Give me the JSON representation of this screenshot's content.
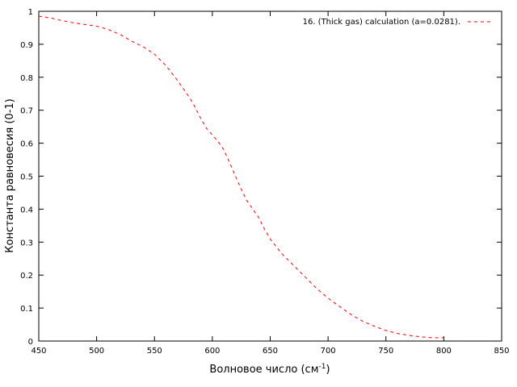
{
  "chart_data": {
    "type": "line",
    "xlabel": "Волновое число (см",
    "xlabel_sup": "-1",
    "xlabel_end": ")",
    "ylabel": "Константа равновесия (0-1)",
    "xlim": [
      450,
      850
    ],
    "ylim": [
      0,
      1
    ],
    "xticks": [
      450,
      500,
      550,
      600,
      650,
      700,
      750,
      800,
      850
    ],
    "yticks": [
      0,
      0.1,
      0.2,
      0.3,
      0.4,
      0.5,
      0.6,
      0.7,
      0.8,
      0.9,
      1
    ],
    "xtick_labels": [
      "450",
      "500",
      "550",
      "600",
      "650",
      "700",
      "750",
      "800",
      "850"
    ],
    "ytick_labels": [
      "0",
      "0.1",
      "0.2",
      "0.3",
      "0.4",
      "0.5",
      "0.6",
      "0.7",
      "0.8",
      "0.9",
      "1"
    ],
    "grid": false,
    "legend_position": "top-right",
    "series": [
      {
        "name": "16. (Thick gas) calculation (a=0.0281).",
        "color": "#ff0000",
        "style": "dashed",
        "x": [
          450,
          460,
          470,
          480,
          490,
          500,
          510,
          520,
          530,
          540,
          550,
          560,
          570,
          580,
          585,
          590,
          595,
          600,
          605,
          610,
          615,
          620,
          625,
          630,
          635,
          640,
          645,
          650,
          660,
          670,
          680,
          690,
          700,
          710,
          720,
          730,
          740,
          750,
          760,
          770,
          780,
          790,
          800
        ],
        "y": [
          0.985,
          0.98,
          0.972,
          0.965,
          0.96,
          0.955,
          0.945,
          0.93,
          0.91,
          0.893,
          0.87,
          0.835,
          0.79,
          0.74,
          0.71,
          0.675,
          0.645,
          0.625,
          0.605,
          0.58,
          0.54,
          0.5,
          0.46,
          0.425,
          0.4,
          0.375,
          0.34,
          0.31,
          0.265,
          0.23,
          0.195,
          0.16,
          0.13,
          0.105,
          0.08,
          0.06,
          0.045,
          0.032,
          0.023,
          0.017,
          0.013,
          0.01,
          0.01
        ]
      }
    ]
  }
}
